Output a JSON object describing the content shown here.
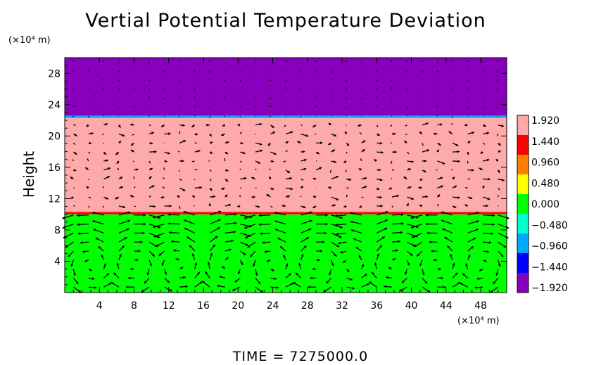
{
  "title": "Vertial Potential Temperature Deviation",
  "xunit": "(×10⁴ m)",
  "yunit": "(×10⁴ m)",
  "time_label": "TIME  =  7275000.0",
  "chart_data": {
    "type": "heatmap",
    "title": "Vertial Potential Temperature Deviation",
    "xlabel": "",
    "ylabel": "Height",
    "x_unit": "(×10⁴ m)",
    "y_unit": "(×10⁴ m)",
    "xlim": [
      0,
      51
    ],
    "ylim": [
      0,
      30
    ],
    "x_ticks": [
      4,
      8,
      12,
      16,
      20,
      24,
      28,
      32,
      36,
      40,
      44,
      48
    ],
    "y_ticks": [
      4,
      8,
      12,
      16,
      20,
      24,
      28
    ],
    "layers": [
      {
        "y_from": 0,
        "y_to": 10,
        "value": 0.0
      },
      {
        "y_from": 10,
        "y_to": 10.3,
        "value": 1.6
      },
      {
        "y_from": 10.3,
        "y_to": 22.3,
        "value": 1.92
      },
      {
        "y_from": 22.3,
        "y_to": 22.6,
        "value": -0.96
      },
      {
        "y_from": 22.6,
        "y_to": 30,
        "value": -1.92
      }
    ],
    "colorbar": {
      "labels": [
        "1.920",
        "1.440",
        "0.960",
        "0.480",
        "0.000",
        "−0.480",
        "−0.960",
        "−1.440",
        "−1.920"
      ],
      "colors": [
        "#ffaaaa",
        "#ff0000",
        "#ff8000",
        "#ffff00",
        "#00ff00",
        "#00ffcc",
        "#00aaff",
        "#0000ff",
        "#8800bb"
      ]
    },
    "vectors": "wind field overlay (arrows)",
    "grid": false
  }
}
